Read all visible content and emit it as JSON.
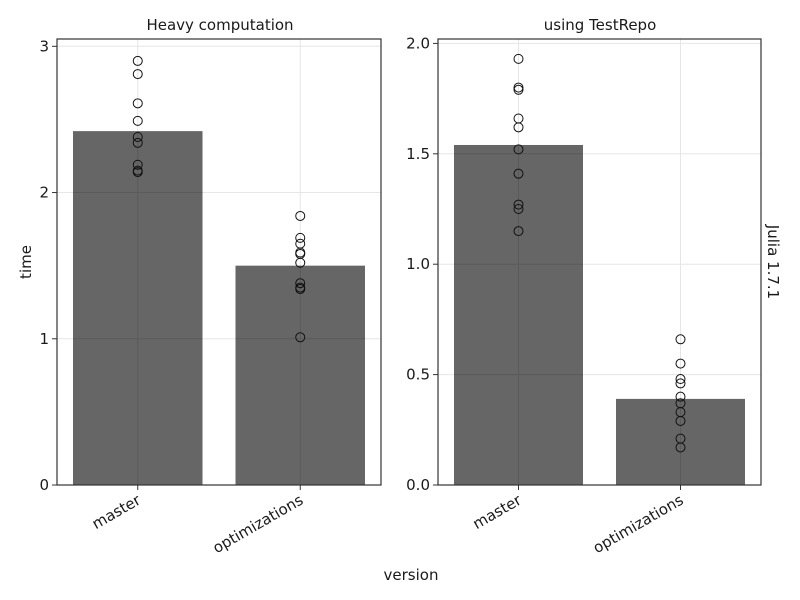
{
  "figure": {
    "xlabel": "version",
    "ylabel": "time",
    "facet_label": "Julia 1.7.1"
  },
  "colors": {
    "bar": "#666666",
    "points": "#111111",
    "grid": "#e6e6e6",
    "frame": "#333333",
    "background": "#ffffff"
  },
  "chart_data": [
    {
      "type": "bar",
      "title": "Heavy computation",
      "xlabel": "version",
      "ylabel": "time",
      "categories": [
        "master",
        "optimizations"
      ],
      "values": [
        2.42,
        1.5
      ],
      "points": [
        [
          2.9,
          2.81,
          2.61,
          2.49,
          2.38,
          2.34,
          2.19,
          2.15,
          2.14
        ],
        [
          1.84,
          1.69,
          1.65,
          1.59,
          1.58,
          1.52,
          1.38,
          1.35,
          1.34,
          1.01
        ]
      ],
      "ylim": [
        0,
        3.05
      ],
      "yticks": [
        0,
        1,
        2,
        3
      ],
      "ytick_labels": [
        "0",
        "1",
        "2",
        "3"
      ],
      "grid": true
    },
    {
      "type": "bar",
      "title": "using TestRepo",
      "xlabel": "version",
      "ylabel": "",
      "categories": [
        "master",
        "optimizations"
      ],
      "values": [
        1.54,
        0.39
      ],
      "points": [
        [
          1.93,
          1.8,
          1.79,
          1.66,
          1.62,
          1.52,
          1.41,
          1.27,
          1.25,
          1.15
        ],
        [
          0.66,
          0.55,
          0.48,
          0.46,
          0.4,
          0.37,
          0.33,
          0.29,
          0.21,
          0.17
        ]
      ],
      "ylim": [
        0,
        2.02
      ],
      "yticks": [
        0,
        0.5,
        1.0,
        1.5,
        2.0
      ],
      "ytick_labels": [
        "0.0",
        "0.5",
        "1.0",
        "1.5",
        "2.0"
      ],
      "grid": true
    }
  ]
}
